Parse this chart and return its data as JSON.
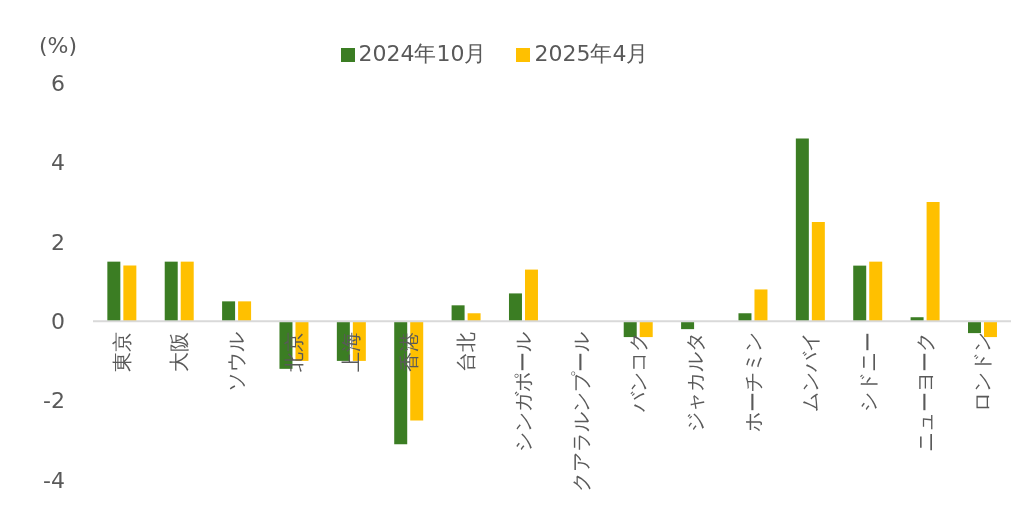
{
  "chart_data": {
    "type": "bar",
    "ylabel": "(%)",
    "categories": [
      "東京",
      "大阪",
      "ソウル",
      "北京",
      "上海",
      "香港",
      "台北",
      "シンガポール",
      "クアラルンプール",
      "バンコク",
      "ジャカルタ",
      "ホーチミン",
      "ムンバイ",
      "シドニー",
      "ニューヨーク",
      "ロンドン"
    ],
    "series": [
      {
        "name": "2024年10月",
        "color": "#3b7d23",
        "values": [
          1.5,
          1.5,
          0.5,
          -1.2,
          -1.0,
          -3.1,
          0.4,
          0.7,
          0,
          -0.4,
          -0.2,
          0.2,
          4.6,
          1.4,
          0.1,
          -0.3
        ]
      },
      {
        "name": "2025年4月",
        "color": "#ffc000",
        "values": [
          1.4,
          1.5,
          0.5,
          -1.0,
          -1.0,
          -2.5,
          0.2,
          1.3,
          0,
          -0.4,
          0,
          0.8,
          2.5,
          1.5,
          3.0,
          -0.4
        ]
      }
    ],
    "ylim": [
      -4,
      6
    ],
    "yticks": [
      -4,
      -2,
      0,
      2,
      4,
      6
    ],
    "legend": "top"
  }
}
